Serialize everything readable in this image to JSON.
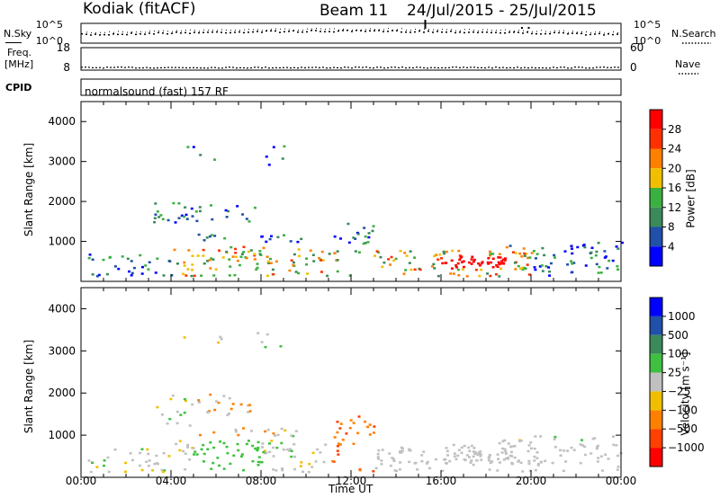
{
  "header": {
    "station": "Kodiak (fitACF)",
    "beam": "Beam 11",
    "date_range": "24/Jul/2015 - 25/Jul/2015"
  },
  "left_labels": {
    "nsky": "N.Sky",
    "freq": "Freq.",
    "freq_unit": "[MHz]",
    "cpid": "CPID"
  },
  "right_labels": {
    "nsearch": "N.Search",
    "nave": "Nave"
  },
  "cpid_text": "normalsound (fast) 157 RF",
  "colors": {
    "power": [
      "#0000ff",
      "#2050a8",
      "#3a8a5a",
      "#3ab040",
      "#f0c000",
      "#ff8000",
      "#ff3000",
      "#ff0000"
    ],
    "velocity": [
      "#0000ff",
      "#2050a8",
      "#3a8a5a",
      "#40c040",
      "#c0c0c0",
      "#f0c000",
      "#ff8000",
      "#ff4000",
      "#ff0000"
    ],
    "trace": "#000000"
  },
  "chart_data": [
    {
      "type": "line",
      "panel": "noise",
      "yticks_left": [
        "10^5",
        "10^0"
      ],
      "yticks_right": [
        "10^5",
        "10^0"
      ],
      "xlim": [
        0,
        24
      ]
    },
    {
      "type": "line",
      "panel": "freq-nave",
      "yticks_left": [
        "18",
        "8"
      ],
      "yticks_right": [
        "60",
        "0"
      ],
      "xlim": [
        0,
        24
      ]
    },
    {
      "type": "heatmap",
      "panel": "power",
      "ylabel": "Slant Range [km]",
      "yticks": [
        "1000",
        "2000",
        "3000",
        "4000"
      ],
      "ylim": [
        0,
        4500
      ],
      "xlim": [
        0,
        24
      ],
      "colorbar_label": "Power [dB]",
      "colorbar_ticks": [
        "4",
        "8",
        "12",
        "16",
        "20",
        "24",
        "28"
      ]
    },
    {
      "type": "heatmap",
      "panel": "velocity",
      "ylabel": "Slant Range [km]",
      "yticks": [
        "1000",
        "2000",
        "3000",
        "4000"
      ],
      "ylim": [
        0,
        4500
      ],
      "xlim": [
        0,
        24
      ],
      "xlabel": "Time UT",
      "xticks": [
        "00:00",
        "04:00",
        "08:00",
        "12:00",
        "16:00",
        "20:00",
        "00:00"
      ],
      "colorbar_label": "Velocity [m s⁻¹]",
      "colorbar_ticks": [
        "1000",
        "500",
        "100",
        "25",
        "−25",
        "−100",
        "−500",
        "−1000"
      ]
    }
  ]
}
